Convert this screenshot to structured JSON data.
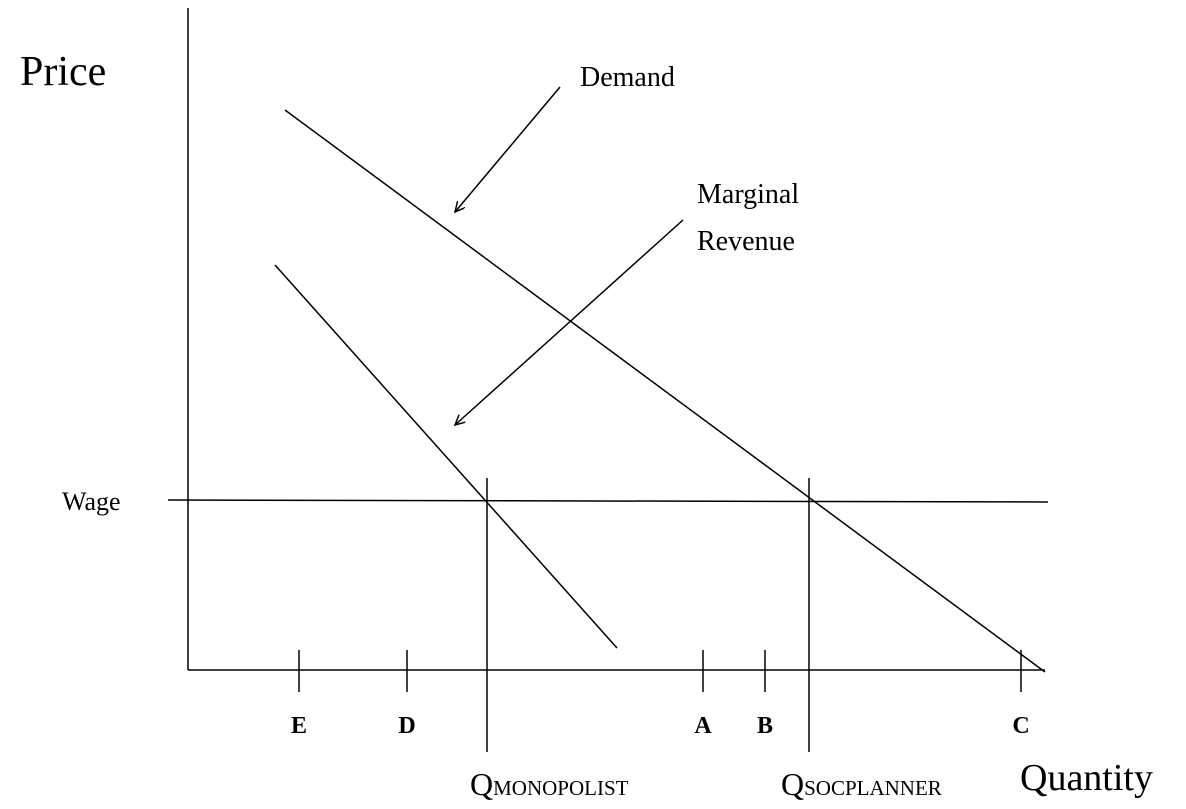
{
  "axes": {
    "y_label": "Price",
    "x_label": "Quantity"
  },
  "curves": {
    "demand": "Demand",
    "marginal_revenue": [
      "Marginal",
      "Revenue"
    ]
  },
  "wage_label": "Wage",
  "points": [
    "E",
    "D",
    "A",
    "B",
    "C"
  ],
  "quantities": {
    "monopolist": {
      "main": "Q",
      "sub": "MONOPOLIST"
    },
    "social_planner": {
      "main": "Q",
      "sub": "SOCPLANNER"
    }
  }
}
